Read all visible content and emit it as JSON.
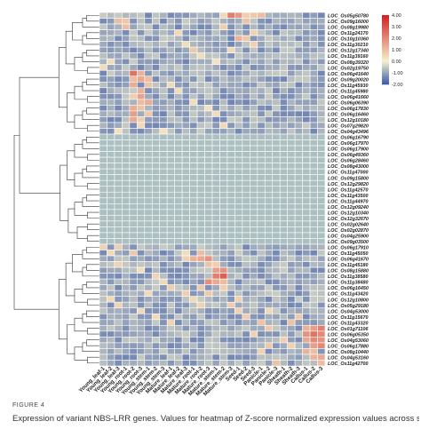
{
  "figure": {
    "label": "FIGURE 4",
    "caption": "Expression of variant NBS-LRR genes. Values for heatmap of Z-score normalized expression values across samples for each gene"
  },
  "chart_data": {
    "type": "heatmap",
    "title": "",
    "samples": [
      "Young_leaf-1",
      "Young_leaf-2",
      "Young_leaf-3",
      "Young_root-1",
      "Young_root-2",
      "Young_root-3",
      "Young_stem-1",
      "Young_stem-2",
      "Young_stem-3",
      "Mature_leaf-1",
      "Mature_leaf-2",
      "Mature_leaf-3",
      "Mature_root-1",
      "Mature_root-2",
      "Mature_root-3",
      "Mature_stem-1",
      "Mature_stem-2",
      "Mature_stem-3",
      "Seed-1",
      "Seed-2",
      "Seed-3",
      "Panicle-1",
      "Panicle-2",
      "Panicle-3",
      "Sheath-1",
      "Sheath-2",
      "Sheath-3",
      "Callus-1",
      "Callus-2",
      "Callus-3"
    ],
    "genes": [
      "LOC_Os05g50780",
      "LOC_Os09g16000",
      "LOC_Os08g19980",
      "LOC_Os11g24170",
      "LOC_Os10g10360",
      "LOC_Os11g30210",
      "LOC_Os12g17340",
      "LOC_Os11g39160",
      "LOC_Os08g39320",
      "LOC_Os02g19750",
      "LOC_Os06g41640",
      "LOC_Os09g20020",
      "LOC_Os11g45930",
      "LOC_Os11g45980",
      "LOC_Os06g41660",
      "LOC_Os06g06390",
      "LOC_Os06g17830",
      "LOC_Os06g16460",
      "LOC_Os12g10180",
      "LOC_Os07g29820",
      "LOC_Os04g43496",
      "LOC_Os06g16790",
      "LOC_Os06g17970",
      "LOC_Os06g17900",
      "LOC_Os06g49360",
      "LOC_Os06g28460",
      "LOC_Os08g43000",
      "LOC_Os11g47000",
      "LOC_Os09g15800",
      "LOC_Os12g29820",
      "LOC_Os11g42570",
      "LOC_Os11g43500",
      "LOC_Os11g44970",
      "LOC_Os12g09240",
      "LOC_Os12g10340",
      "LOC_Os12g32670",
      "LOC_Os02g02640",
      "LOC_Os02g02870",
      "LOC_Os04g25900",
      "LOC_Os09g03500",
      "LOC_Os06g17910",
      "LOC_Os11g45050",
      "LOC_Os06g41670",
      "LOC_Os11g45180",
      "LOC_Os08g15880",
      "LOC_Os11g38580",
      "LOC_Os11g38480",
      "LOC_Os06g16450",
      "LOC_Os11g43420",
      "LOC_Os12g10800",
      "LOC_Os05g29180",
      "LOC_Os04g53000",
      "LOC_Os11g15670",
      "LOC_Os11g43320",
      "LOC_Os01g71106",
      "LOC_Os06g05350",
      "LOC_Os04g53060",
      "LOC_Os06g17880",
      "LOC_Os08g10440",
      "LOC_Os04g53160",
      "LOC_Os11g42700"
    ],
    "legend": {
      "ticks": [
        4,
        3,
        2,
        1,
        0,
        -1,
        -2
      ],
      "tick_labels": [
        "4.00",
        "3.00",
        "2.00",
        "1.00",
        "0.00",
        "-1.00",
        "-2.00"
      ],
      "range": [
        -2,
        4
      ]
    },
    "colors": {
      "low": "#3a57a8",
      "mid": "#f5f2cc",
      "high": "#d11f22",
      "flat": "#acc0c2",
      "grid": "#ffffff",
      "dendrogram": "#333333"
    },
    "blocks": [
      {
        "rows": [
          0,
          20
        ],
        "default": -0.5,
        "cells": [
          [
            1,
            2,
            1.0
          ],
          [
            1,
            3,
            0.8
          ],
          [
            2,
            3,
            1.0
          ],
          [
            3,
            10,
            0.5
          ],
          [
            5,
            11,
            0.4
          ],
          [
            6,
            12,
            0.8
          ],
          [
            7,
            13,
            0.4
          ],
          [
            8,
            15,
            0.3
          ],
          [
            0,
            16,
            0.5
          ],
          [
            0,
            17,
            2.2
          ],
          [
            0,
            18,
            1.7
          ],
          [
            0,
            19,
            0.7
          ],
          [
            0,
            20,
            0.8
          ],
          [
            0,
            21,
            1.0
          ],
          [
            1,
            19,
            0.9
          ],
          [
            2,
            16,
            0.7
          ],
          [
            3,
            20,
            0.6
          ],
          [
            4,
            18,
            1.2
          ],
          [
            4,
            19,
            0.8
          ],
          [
            5,
            20,
            0.6
          ],
          [
            6,
            17,
            0.5
          ],
          [
            10,
            4,
            2.4
          ],
          [
            10,
            5,
            1.2
          ],
          [
            11,
            4,
            1.0
          ],
          [
            11,
            5,
            1.4
          ],
          [
            11,
            6,
            1.0
          ],
          [
            12,
            4,
            1.3
          ],
          [
            12,
            6,
            0.9
          ],
          [
            13,
            5,
            1.2
          ],
          [
            14,
            4,
            0.7
          ],
          [
            14,
            5,
            1.5
          ],
          [
            15,
            5,
            1.0
          ],
          [
            15,
            6,
            1.3
          ],
          [
            16,
            4,
            1.3
          ],
          [
            16,
            5,
            0.9
          ],
          [
            17,
            4,
            1.6
          ],
          [
            17,
            6,
            0.8
          ],
          [
            18,
            4,
            1.4
          ],
          [
            18,
            5,
            0.7
          ],
          [
            19,
            5,
            0.5
          ],
          [
            12,
            9,
            0.5
          ],
          [
            13,
            10,
            0.4
          ],
          [
            15,
            12,
            0.4
          ],
          [
            16,
            14,
            0.3
          ],
          [
            17,
            15,
            0.4
          ],
          [
            19,
            16,
            0.5
          ],
          [
            20,
            8,
            0.3
          ],
          [
            8,
            1,
            0.4
          ],
          [
            9,
            0,
            0.4
          ],
          [
            20,
            2,
            0.3
          ]
        ]
      },
      {
        "rows": [
          21,
          39
        ],
        "flat": true
      },
      {
        "rows": [
          40,
          60
        ],
        "default": -0.5,
        "cells": [
          [
            40,
            0,
            0.6
          ],
          [
            41,
            4,
            0.8
          ],
          [
            41,
            13,
            1.0
          ],
          [
            42,
            12,
            1.2
          ],
          [
            42,
            13,
            1.4
          ],
          [
            42,
            14,
            1.8
          ],
          [
            43,
            14,
            0.9
          ],
          [
            43,
            15,
            0.7
          ],
          [
            44,
            15,
            1.6
          ],
          [
            44,
            16,
            1.8
          ],
          [
            45,
            15,
            2.2
          ],
          [
            45,
            16,
            2.8
          ],
          [
            46,
            14,
            1.9
          ],
          [
            46,
            15,
            1.4
          ],
          [
            46,
            16,
            1.0
          ],
          [
            47,
            13,
            0.8
          ],
          [
            47,
            16,
            0.7
          ],
          [
            48,
            11,
            0.7
          ],
          [
            48,
            14,
            0.8
          ],
          [
            49,
            12,
            0.5
          ],
          [
            49,
            18,
            0.6
          ],
          [
            41,
            11,
            0.4
          ],
          [
            42,
            11,
            0.6
          ],
          [
            40,
            2,
            0.7
          ],
          [
            41,
            1,
            0.5
          ],
          [
            43,
            2,
            0.6
          ],
          [
            44,
            5,
            0.4
          ],
          [
            45,
            7,
            0.6
          ],
          [
            46,
            8,
            0.5
          ],
          [
            47,
            9,
            0.7
          ],
          [
            48,
            6,
            0.5
          ],
          [
            49,
            1,
            0.5
          ],
          [
            50,
            2,
            0.6
          ],
          [
            51,
            5,
            0.5
          ],
          [
            52,
            7,
            0.5
          ],
          [
            53,
            9,
            0.6
          ],
          [
            50,
            13,
            0.6
          ],
          [
            50,
            17,
            0.7
          ],
          [
            51,
            18,
            0.6
          ],
          [
            52,
            19,
            0.7
          ],
          [
            53,
            21,
            0.9
          ],
          [
            54,
            22,
            0.8
          ],
          [
            55,
            20,
            0.6
          ],
          [
            56,
            24,
            0.7
          ],
          [
            57,
            22,
            0.8
          ],
          [
            58,
            21,
            0.6
          ],
          [
            60,
            23,
            0.9
          ],
          [
            51,
            22,
            0.5
          ],
          [
            54,
            27,
            1.2
          ],
          [
            54,
            28,
            1.6
          ],
          [
            54,
            29,
            2.2
          ],
          [
            55,
            27,
            1.8
          ],
          [
            55,
            28,
            2.4
          ],
          [
            55,
            29,
            2.0
          ],
          [
            56,
            27,
            1.4
          ],
          [
            56,
            28,
            2.0
          ],
          [
            56,
            29,
            1.8
          ],
          [
            57,
            28,
            1.6
          ],
          [
            57,
            29,
            2.0
          ],
          [
            58,
            27,
            1.2
          ],
          [
            58,
            28,
            1.0
          ],
          [
            59,
            28,
            1.2
          ],
          [
            59,
            29,
            1.4
          ],
          [
            60,
            29,
            1.0
          ],
          [
            52,
            26,
            0.8
          ],
          [
            53,
            25,
            0.9
          ],
          [
            57,
            25,
            0.6
          ]
        ]
      }
    ]
  }
}
